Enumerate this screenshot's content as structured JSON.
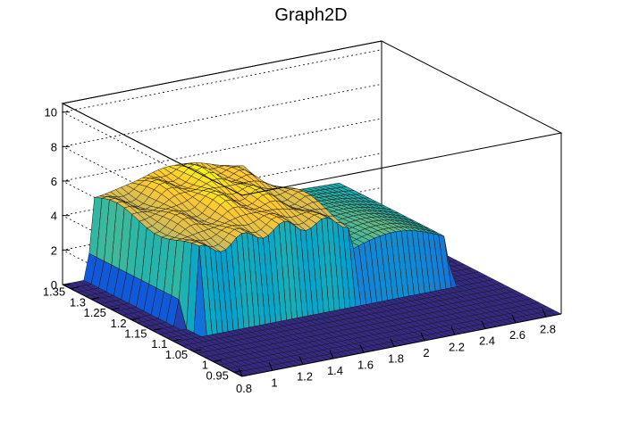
{
  "chart_data": {
    "type": "surface",
    "title": "Graph2D",
    "xlabel": "",
    "ylabel": "",
    "zlabel": "",
    "x_range": [
      0.8,
      2.9
    ],
    "y_range": [
      0.93,
      1.37
    ],
    "z_range": [
      0,
      10.5
    ],
    "x_ticks": [
      "0.8",
      "1",
      "1.2",
      "1.4",
      "1.6",
      "1.8",
      "2",
      "2.2",
      "2.4",
      "2.6",
      "2.8"
    ],
    "y_ticks": [
      "0.95",
      "1",
      "1.05",
      "1.1",
      "1.15",
      "1.2",
      "1.25",
      "1.3",
      "1.35"
    ],
    "z_ticks": [
      "0",
      "2",
      "4",
      "6",
      "8",
      "10"
    ],
    "grid": true,
    "palette": [
      "#352a87",
      "#0f5cdd",
      "#1481d6",
      "#06a4ca",
      "#2eb7a4",
      "#87bf77",
      "#d1bb59",
      "#fec832",
      "#f9fb0e"
    ],
    "surface": {
      "description_regions": [
        {
          "x": [
            0.8,
            0.95
          ],
          "y": [
            0.93,
            1.37
          ],
          "z": 0
        },
        {
          "x": [
            1.0,
            2.0
          ],
          "y": [
            0.93,
            1.1
          ],
          "z": 0
        },
        {
          "x": [
            1.0,
            2.0
          ],
          "y": [
            1.1,
            1.37
          ],
          "z": [
            4.5,
            6.0
          ]
        },
        {
          "x": [
            2.0,
            2.6
          ],
          "y": [
            1.1,
            1.37
          ],
          "z": [
            2.6,
            4.5
          ]
        },
        {
          "x": [
            2.6,
            2.9
          ],
          "y": [
            0.93,
            1.37
          ],
          "z": 0
        }
      ],
      "peak": 6.0
    }
  }
}
